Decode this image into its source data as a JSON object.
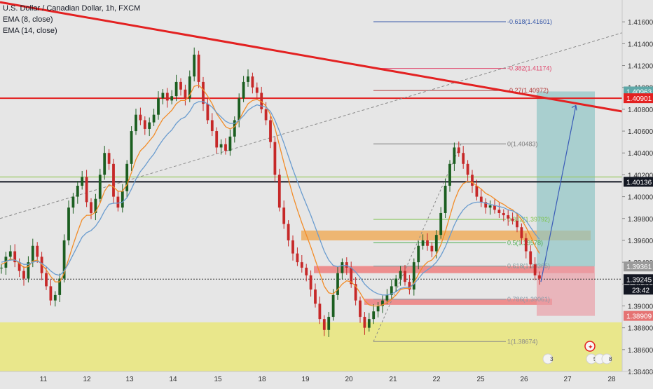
{
  "chart_data": {
    "type": "line",
    "title": "U.S. Dollar / Canadian Dollar, 1h, FXCM",
    "indicators": [
      "EMA (8, close)",
      "EMA (14, close)"
    ],
    "x_labels": [
      "11",
      "12",
      "13",
      "14",
      "15",
      "18",
      "19",
      "20",
      "21",
      "22",
      "25",
      "26",
      "27",
      "28"
    ],
    "y_ticks": [
      "1.41600",
      "1.41400",
      "1.41200",
      "1.41000",
      "1.40800",
      "1.40600",
      "1.40400",
      "1.40200",
      "1.40000",
      "1.39800",
      "1.39600",
      "1.39400",
      "1.39200",
      "1.39000",
      "1.38800",
      "1.38600",
      "1.38400"
    ],
    "ylim": [
      1.384,
      1.418
    ],
    "series": [
      {
        "values": [
          1.3935,
          1.3945,
          1.395,
          1.394,
          1.3932,
          1.3925,
          1.394,
          1.3955,
          1.3945,
          1.393,
          1.3918,
          1.3905,
          1.391,
          1.3925,
          1.396,
          1.399,
          1.4,
          1.401,
          1.4018,
          1.3995,
          1.3985,
          1.3998,
          1.402,
          1.404,
          1.403,
          1.4,
          1.399,
          1.4005,
          1.403,
          1.406,
          1.4075,
          1.407,
          1.4062,
          1.4068,
          1.4075,
          1.409,
          1.4095,
          1.4088,
          1.4092,
          1.4105,
          1.4098,
          1.409,
          1.411,
          1.413,
          1.4105,
          1.4085,
          1.407,
          1.406,
          1.4045,
          1.4048,
          1.4042,
          1.4055,
          1.407,
          1.409,
          1.4105,
          1.411,
          1.41,
          1.4095,
          1.408,
          1.407,
          1.405,
          1.402,
          1.399,
          1.3975,
          1.396,
          1.3948,
          1.394,
          1.3935,
          1.3928,
          1.3915,
          1.3902,
          1.3888,
          1.3878,
          1.389,
          1.391,
          1.393,
          1.394,
          1.3935,
          1.392,
          1.3905,
          1.389,
          1.388,
          1.3888,
          1.3895,
          1.39,
          1.3905,
          1.391,
          1.3918,
          1.3925,
          1.3932,
          1.3922,
          1.3915,
          1.394,
          1.3955,
          1.396,
          1.3955,
          1.395,
          1.3965,
          1.3985,
          1.401,
          1.403,
          1.4045,
          1.404,
          1.403,
          1.402,
          1.401,
          1.4,
          1.3995,
          1.399,
          1.3992,
          1.3988,
          1.3985,
          1.3983,
          1.398,
          1.3978,
          1.3972,
          1.3962,
          1.395,
          1.3938,
          1.3928,
          1.3925
        ]
      },
      {
        "name": "EMA (8, close)",
        "values": [
          1.3938,
          1.394,
          1.3943,
          1.3942,
          1.3939,
          1.3935,
          1.3936,
          1.3941,
          1.3942,
          1.3938,
          1.3933,
          1.3927,
          1.3922,
          1.3922,
          1.393,
          1.3943,
          1.3956,
          1.3968,
          1.3979,
          1.3983,
          1.3983,
          1.3986,
          1.3994,
          1.4005,
          1.4011,
          1.4009,
          1.4005,
          1.4005,
          1.4011,
          1.4022,
          1.4034,
          1.4042,
          1.4046,
          1.4051,
          1.4056,
          1.4064,
          1.4071,
          1.4075,
          1.4079,
          1.4085,
          1.4088,
          1.4088,
          1.4093,
          1.4101,
          1.4102,
          1.4098,
          1.4092,
          1.4085,
          1.4076,
          1.407,
          1.4064,
          1.4062,
          1.4064,
          1.407,
          1.4078,
          1.4085,
          1.4088,
          1.4089,
          1.4087,
          1.4083,
          1.4075,
          1.4063,
          1.4047,
          1.4031,
          1.4016,
          1.4001,
          1.3988,
          1.3976,
          1.3965,
          1.3954,
          1.3942,
          1.393,
          1.3918,
          1.3912,
          1.3911,
          1.3915,
          1.392,
          1.3923,
          1.3922,
          1.3918,
          1.3912,
          1.3905,
          1.3901,
          1.39,
          1.39,
          1.3901,
          1.3903,
          1.3906,
          1.391,
          1.3915,
          1.3916,
          1.3916,
          1.3921,
          1.3929,
          1.3936,
          1.394,
          1.3942,
          1.3947,
          1.3956,
          1.3968,
          1.3982,
          1.3996,
          1.4006,
          1.4012,
          1.4014,
          1.4013,
          1.401,
          1.4007,
          1.4003,
          1.4001,
          1.3998,
          1.3995,
          1.3993,
          1.399,
          1.3988,
          1.3984,
          1.3979,
          1.3972,
          1.3964,
          1.3955,
          1.3948
        ]
      },
      {
        "name": "EMA (14, close)",
        "values": [
          1.394,
          1.3941,
          1.3942,
          1.3942,
          1.394,
          1.3938,
          1.3938,
          1.394,
          1.3941,
          1.3939,
          1.3936,
          1.3932,
          1.3929,
          1.3928,
          1.3932,
          1.3939,
          1.3947,
          1.3955,
          1.3963,
          1.3967,
          1.3969,
          1.3973,
          1.3979,
          1.3987,
          1.3993,
          1.3994,
          1.3994,
          1.3995,
          1.3999,
          1.4007,
          1.4016,
          1.4023,
          1.4028,
          1.4034,
          1.4039,
          1.4046,
          1.4052,
          1.4057,
          1.4061,
          1.4067,
          1.4071,
          1.4073,
          1.4078,
          1.4085,
          1.4087,
          1.4087,
          1.4085,
          1.4082,
          1.4077,
          1.4073,
          1.4069,
          1.4067,
          1.4067,
          1.407,
          1.4074,
          1.4079,
          1.4082,
          1.4084,
          1.4083,
          1.4082,
          1.4078,
          1.407,
          1.406,
          1.4049,
          1.4037,
          1.4025,
          1.4014,
          1.4003,
          1.3993,
          1.3983,
          1.3972,
          1.3961,
          1.395,
          1.3942,
          1.3937,
          1.3936,
          1.3937,
          1.3937,
          1.3935,
          1.3931,
          1.3926,
          1.392,
          1.3916,
          1.3913,
          1.3911,
          1.391,
          1.391,
          1.3911,
          1.3913,
          1.3916,
          1.3917,
          1.3917,
          1.392,
          1.3925,
          1.393,
          1.3933,
          1.3936,
          1.394,
          1.3946,
          1.3954,
          1.3964,
          1.3974,
          1.3982,
          1.3988,
          1.3992,
          1.3994,
          1.3995,
          1.3995,
          1.3994,
          1.3993,
          1.3992,
          1.3991,
          1.399,
          1.3988,
          1.3987,
          1.3985,
          1.3982,
          1.3978,
          1.3972,
          1.3966,
          1.3961
        ]
      }
    ],
    "fib_levels": [
      {
        "label": "-0.618(1.41601)",
        "value": 1.41601,
        "color": "#3b5ba9"
      },
      {
        "label": "-0.382(1.41174)",
        "value": 1.41174,
        "color": "#e0446a"
      },
      {
        "label": "-0.27(1.40972)",
        "value": 1.40972,
        "color": "#b23a3a"
      },
      {
        "label": "0(1.40483)",
        "value": 1.40483,
        "color": "#7a7a7a"
      },
      {
        "label": "0.382(1.39792)",
        "value": 1.39792,
        "color": "#7cc24a"
      },
      {
        "label": "0.5(1.39578)",
        "value": 1.39578,
        "color": "#4caf50"
      },
      {
        "label": "0.618(1.39365)",
        "value": 1.39365,
        "color": "#7a9a9a"
      },
      {
        "label": "0.786(1.39061)",
        "value": 1.39061,
        "color": "#8a9aa8"
      },
      {
        "label": "1(1.38674)",
        "value": 1.38674,
        "color": "#8a8a8a"
      }
    ],
    "price_badges": [
      {
        "label": "1.40963",
        "value": 1.40963,
        "color": "#5fa8a8"
      },
      {
        "label": "1.40901",
        "value": 1.40901,
        "color": "#e32121"
      },
      {
        "label": "1.40136",
        "value": 1.40136,
        "color": "#131722"
      },
      {
        "label": "1.39361",
        "value": 1.39361,
        "color": "#9a9a9a"
      },
      {
        "label": "1.39245",
        "value": 1.39245,
        "color": "#131722"
      },
      {
        "label": "1.38909",
        "value": 1.38909,
        "color": "#e57373"
      }
    ],
    "countdown": "23:42",
    "event_counts": [
      "3",
      "5",
      "3",
      "8"
    ],
    "colors": {
      "candle_up": "#1b5e20",
      "candle_down": "#c62828",
      "ema8": "#f28c28",
      "ema14": "#6a9ccf",
      "trendline": "#e32121",
      "resistance": "#e32121",
      "support_line": "#131722",
      "green_line": "#9ccc65",
      "demand_zone": "#e9e67a",
      "orange_zone": "#f0a64b",
      "red_zone": "#ef7070",
      "tp_zone": "#8ec5c5",
      "sl_zone": "#eaa0a8",
      "projection": "#3a5bb8",
      "background": "#e6e6e6"
    }
  }
}
